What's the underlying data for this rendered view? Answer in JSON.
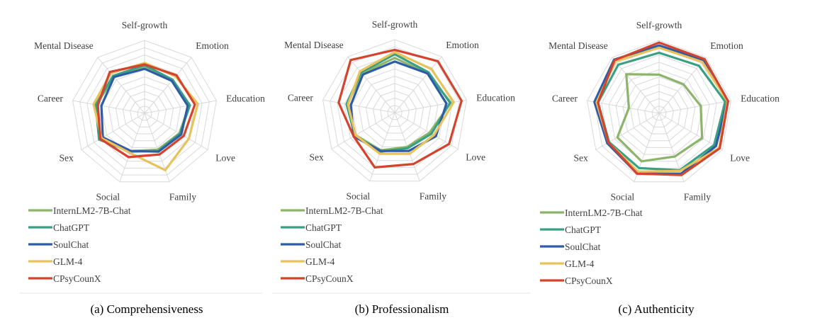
{
  "chart_data": [
    {
      "type": "radar",
      "caption": "(a) Comprehensiveness",
      "categories": [
        "Self-growth",
        "Emotion",
        "Education",
        "Love",
        "Family",
        "Social",
        "Sex",
        "Career",
        "Mental Disease"
      ],
      "rlim": [
        0,
        1
      ],
      "grid": true,
      "legend_position": "bottom-left",
      "series": [
        {
          "name": "InternLM2-7B-Chat",
          "color": "#8cb56b",
          "values": [
            0.64,
            0.59,
            0.62,
            0.55,
            0.53,
            0.55,
            0.71,
            0.67,
            0.65
          ]
        },
        {
          "name": "ChatGPT",
          "color": "#3aa084",
          "values": [
            0.66,
            0.6,
            0.63,
            0.56,
            0.55,
            0.56,
            0.72,
            0.68,
            0.67
          ]
        },
        {
          "name": "SoulChat",
          "color": "#2e5ca6",
          "values": [
            0.61,
            0.58,
            0.6,
            0.58,
            0.56,
            0.55,
            0.66,
            0.6,
            0.65
          ]
        },
        {
          "name": "GLM-4",
          "color": "#e8c25c",
          "values": [
            0.69,
            0.66,
            0.74,
            0.7,
            0.83,
            0.58,
            0.68,
            0.71,
            0.72
          ]
        },
        {
          "name": "CPsyCounX",
          "color": "#d4432e",
          "values": [
            0.67,
            0.68,
            0.7,
            0.62,
            0.6,
            0.64,
            0.7,
            0.65,
            0.74
          ]
        }
      ]
    },
    {
      "type": "radar",
      "caption": "(b) Professionalism",
      "categories": [
        "Self-growth",
        "Emotion",
        "Education",
        "Love",
        "Family",
        "Social",
        "Sex",
        "Career",
        "Mental Disease"
      ],
      "rlim": [
        0,
        1
      ],
      "grid": true,
      "legend_position": "bottom-left",
      "series": [
        {
          "name": "InternLM2-7B-Chat",
          "color": "#8cb56b",
          "values": [
            0.75,
            0.7,
            0.78,
            0.55,
            0.5,
            0.55,
            0.62,
            0.66,
            0.7
          ]
        },
        {
          "name": "ChatGPT",
          "color": "#3aa084",
          "values": [
            0.8,
            0.72,
            0.77,
            0.58,
            0.52,
            0.57,
            0.63,
            0.67,
            0.72
          ]
        },
        {
          "name": "SoulChat",
          "color": "#2e5ca6",
          "values": [
            0.7,
            0.7,
            0.72,
            0.65,
            0.56,
            0.56,
            0.65,
            0.61,
            0.68
          ]
        },
        {
          "name": "GLM-4",
          "color": "#e8c25c",
          "values": [
            0.83,
            0.78,
            0.82,
            0.62,
            0.6,
            0.6,
            0.62,
            0.65,
            0.74
          ]
        },
        {
          "name": "CPsyCounX",
          "color": "#d4432e",
          "values": [
            0.86,
            0.92,
            0.93,
            0.86,
            0.75,
            0.8,
            0.65,
            0.78,
            0.94
          ]
        }
      ]
    },
    {
      "type": "radar",
      "caption": "(c) Authenticity",
      "categories": [
        "Self-growth",
        "Emotion",
        "Education",
        "Love",
        "Family",
        "Social",
        "Sex",
        "Career",
        "Mental Disease"
      ],
      "rlim": [
        0,
        1
      ],
      "grid": true,
      "legend_position": "bottom-left",
      "series": [
        {
          "name": "InternLM2-7B-Chat",
          "color": "#8cb56b",
          "values": [
            0.53,
            0.52,
            0.58,
            0.68,
            0.63,
            0.7,
            0.66,
            0.42,
            0.7
          ]
        },
        {
          "name": "ChatGPT",
          "color": "#3aa084",
          "values": [
            0.83,
            0.85,
            0.92,
            0.87,
            0.83,
            0.8,
            0.79,
            0.85,
            0.87
          ]
        },
        {
          "name": "SoulChat",
          "color": "#2e5ca6",
          "values": [
            0.93,
            0.95,
            0.95,
            0.9,
            0.88,
            0.88,
            0.82,
            0.9,
            0.96
          ]
        },
        {
          "name": "GLM-4",
          "color": "#e8c25c",
          "values": [
            0.9,
            0.92,
            0.95,
            0.95,
            0.84,
            0.85,
            0.8,
            0.87,
            0.93
          ]
        },
        {
          "name": "CPsyCounX",
          "color": "#d4432e",
          "values": [
            0.97,
            0.97,
            0.96,
            0.96,
            0.9,
            0.88,
            0.8,
            0.85,
            0.95
          ]
        }
      ]
    }
  ]
}
